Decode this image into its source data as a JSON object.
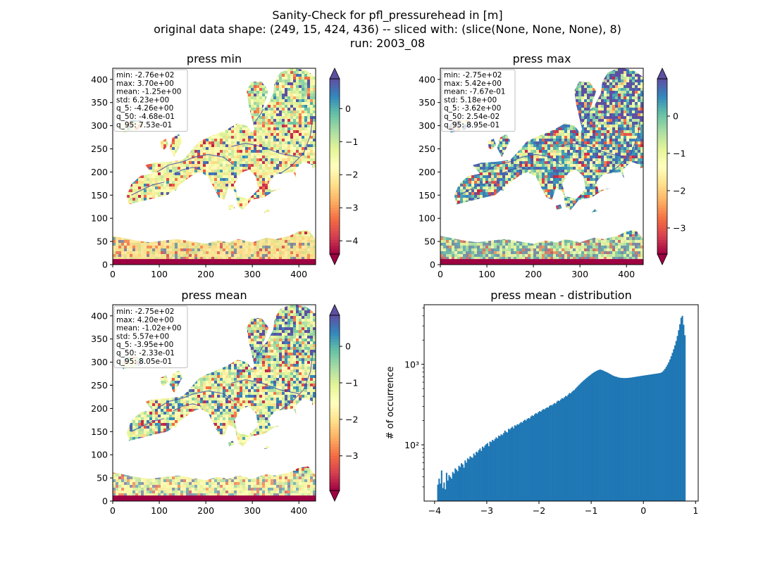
{
  "figure": {
    "title_lines": [
      "Sanity-Check for pfl_pressurehead in [m]",
      "original data shape: (249, 15, 424, 436) -- sliced with: (slice(None, None, None), 8)",
      "run: 2003_08"
    ]
  },
  "chart_data": [
    {
      "type": "heatmap",
      "title": "press min",
      "xlim": [
        0,
        436
      ],
      "ylim": [
        0,
        424
      ],
      "xticks": [
        0,
        100,
        200,
        300,
        400
      ],
      "yticks": [
        0,
        50,
        100,
        150,
        200,
        250,
        300,
        350,
        400
      ],
      "colormap": "Spectral",
      "colorbar": {
        "ticks": [
          0,
          -1,
          -2,
          -3,
          -4
        ],
        "range": [
          -4.4,
          0.9
        ],
        "extend": "both"
      },
      "stats": [
        "min: -2.76e+02",
        "max: 3.70e+00",
        "mean: -1.25e+00",
        "std: 6.23e+00",
        "q_5: -4.26e+00",
        "q_50: -4.68e-01",
        "q_95: 7.53e-01"
      ]
    },
    {
      "type": "heatmap",
      "title": "press max",
      "xlim": [
        0,
        436
      ],
      "ylim": [
        0,
        424
      ],
      "xticks": [
        0,
        100,
        200,
        300,
        400
      ],
      "yticks": [
        0,
        50,
        100,
        150,
        200,
        250,
        300,
        350,
        400
      ],
      "colormap": "Spectral",
      "colorbar": {
        "ticks": [
          0,
          -1,
          -2,
          -3
        ],
        "range": [
          -3.7,
          1.0
        ],
        "extend": "both"
      },
      "stats": [
        "min: -2.75e+02",
        "max: 5.42e+00",
        "mean: -7.67e-01",
        "std: 5.18e+00",
        "q_5: -3.62e+00",
        "q_50: 2.54e-02",
        "q_95: 8.95e-01"
      ]
    },
    {
      "type": "heatmap",
      "title": "press mean",
      "xlim": [
        0,
        436
      ],
      "ylim": [
        0,
        424
      ],
      "xticks": [
        0,
        100,
        200,
        300,
        400
      ],
      "yticks": [
        0,
        50,
        100,
        150,
        200,
        250,
        300,
        350,
        400
      ],
      "colormap": "Spectral",
      "colorbar": {
        "ticks": [
          0,
          -1,
          -2,
          -3
        ],
        "range": [
          -3.95,
          0.85
        ],
        "extend": "both"
      },
      "stats": [
        "min: -2.75e+02",
        "max: 4.20e+00",
        "mean: -1.02e+00",
        "std: 5.57e+00",
        "q_5: -3.95e+00",
        "q_50: -2.33e-01",
        "q_95: 8.05e-01"
      ]
    },
    {
      "type": "bar",
      "title": "press mean - distribution",
      "ylabel": "# of occurrence",
      "yscale": "log",
      "xlim": [
        -4.2,
        1.05
      ],
      "ylim": [
        20,
        5500
      ],
      "xticks": [
        -4,
        -3,
        -2,
        -1,
        0,
        1
      ],
      "yticks": [
        {
          "value": 100,
          "label": "10²"
        },
        {
          "value": 1000,
          "label": "10³"
        }
      ],
      "bin_range": [
        -3.95,
        0.805
      ],
      "bins": 200,
      "color": "#1f77b4",
      "counts": [
        32,
        38,
        33,
        48,
        29,
        34,
        28,
        45,
        36,
        42,
        40,
        38,
        46,
        44,
        51,
        49,
        47,
        55,
        53,
        59,
        57,
        52,
        64,
        60,
        68,
        66,
        72,
        70,
        69,
        78,
        74,
        82,
        80,
        86,
        90,
        84,
        95,
        92,
        98,
        102,
        105,
        96,
        110,
        108,
        115,
        112,
        118,
        124,
        120,
        130,
        128,
        135,
        132,
        140,
        150,
        145,
        142,
        158,
        155,
        162,
        168,
        160,
        175,
        172,
        180,
        178,
        185,
        192,
        188,
        198,
        205,
        200,
        210,
        215,
        212,
        225,
        232,
        228,
        240,
        248,
        242,
        255,
        262,
        258,
        270,
        278,
        275,
        285,
        292,
        290,
        305,
        312,
        308,
        320,
        330,
        325,
        345,
        355,
        350,
        365,
        380,
        375,
        390,
        405,
        400,
        420,
        440,
        435,
        455,
        470,
        480,
        500,
        520,
        540,
        560,
        580,
        600,
        620,
        640,
        660,
        680,
        700,
        720,
        740,
        760,
        780,
        800,
        815,
        830,
        845,
        855,
        860,
        850,
        840,
        825,
        810,
        800,
        785,
        770,
        755,
        740,
        725,
        715,
        705,
        700,
        690,
        685,
        680,
        678,
        676,
        675,
        675,
        676,
        678,
        680,
        683,
        686,
        690,
        694,
        698,
        702,
        706,
        710,
        714,
        718,
        722,
        726,
        730,
        734,
        738,
        742,
        746,
        750,
        754,
        758,
        762,
        766,
        770,
        775,
        780,
        790,
        810,
        840,
        880,
        930,
        990,
        1060,
        1150,
        1260,
        1390,
        1540,
        1720,
        1950,
        2250,
        2650,
        3150,
        3800,
        4000,
        3100,
        2300
      ]
    }
  ]
}
